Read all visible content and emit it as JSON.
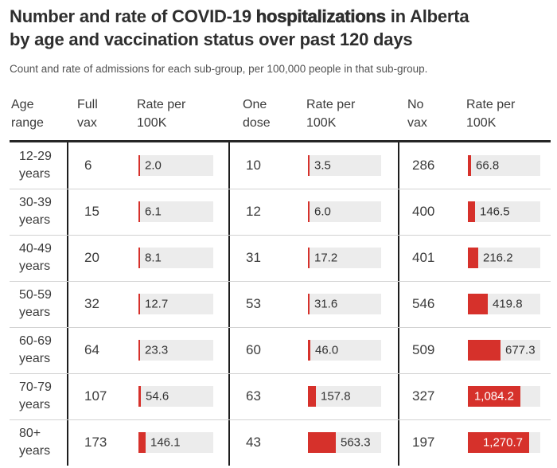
{
  "title": {
    "line1_prefix": "Number and rate of COVID-19 ",
    "line1_emphasis": "hospitalizations",
    "line1_suffix": " in Alberta",
    "line2": "by age and vaccination status over past 120 days"
  },
  "subtitle": "Count and rate of admissions for each sub-group, per 100,000 people in that sub-group.",
  "table": {
    "header": {
      "age": "Age range",
      "groups": [
        {
          "count_label": "Full vax",
          "rate_label": "Rate per 100K"
        },
        {
          "count_label": "One dose",
          "rate_label": "Rate per 100K"
        },
        {
          "count_label": "No vax",
          "rate_label": "Rate per 100K"
        }
      ]
    }
  },
  "colors": {
    "accent_red": "#d6312b",
    "bar_track": "#ececec",
    "divider": "#1e1e1e",
    "separator": "#d2d2d2",
    "title_text": "#2e2e2e",
    "body_text": "#3c3c3c",
    "header_line": "#262626"
  },
  "chart_data": {
    "type": "table",
    "title": "Number and rate of COVID-19 hospitalizations in Alberta by age and vaccination status over past 120 days",
    "subtitle": "Count and rate of admissions for each sub-group, per 100,000 people in that sub-group.",
    "columns": [
      "Age range",
      "Full vax",
      "Rate per 100K",
      "One dose",
      "Rate per 100K",
      "No vax",
      "Rate per 100K"
    ],
    "bar_scale_max": 1500,
    "bar_label_inside_threshold": 1000,
    "rows": [
      {
        "age_range": "12-29 years",
        "full_vax": 6,
        "full_vax_rate": "2.0",
        "one_dose": 10,
        "one_dose_rate": "3.5",
        "no_vax": 286,
        "no_vax_rate": "66.8"
      },
      {
        "age_range": "30-39 years",
        "full_vax": 15,
        "full_vax_rate": "6.1",
        "one_dose": 12,
        "one_dose_rate": "6.0",
        "no_vax": 400,
        "no_vax_rate": "146.5"
      },
      {
        "age_range": "40-49 years",
        "full_vax": 20,
        "full_vax_rate": "8.1",
        "one_dose": 31,
        "one_dose_rate": "17.2",
        "no_vax": 401,
        "no_vax_rate": "216.2"
      },
      {
        "age_range": "50-59 years",
        "full_vax": 32,
        "full_vax_rate": "12.7",
        "one_dose": 53,
        "one_dose_rate": "31.6",
        "no_vax": 546,
        "no_vax_rate": "419.8"
      },
      {
        "age_range": "60-69 years",
        "full_vax": 64,
        "full_vax_rate": "23.3",
        "one_dose": 60,
        "one_dose_rate": "46.0",
        "no_vax": 509,
        "no_vax_rate": "677.3"
      },
      {
        "age_range": "70-79 years",
        "full_vax": 107,
        "full_vax_rate": "54.6",
        "one_dose": 63,
        "one_dose_rate": "157.8",
        "no_vax": 327,
        "no_vax_rate": "1,084.2"
      },
      {
        "age_range": "80+ years",
        "full_vax": 173,
        "full_vax_rate": "146.1",
        "one_dose": 43,
        "one_dose_rate": "563.3",
        "no_vax": 197,
        "no_vax_rate": "1,270.7"
      }
    ]
  }
}
